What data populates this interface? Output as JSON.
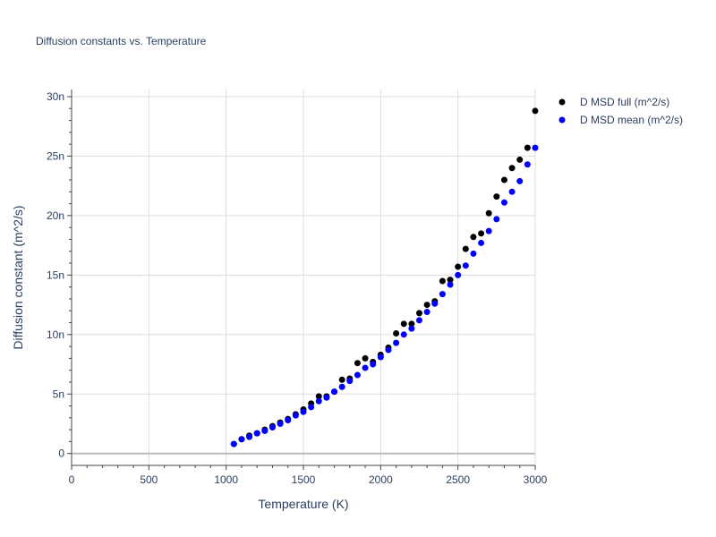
{
  "chart_data": {
    "type": "scatter",
    "title": "Diffusion constants vs. Temperature",
    "xlabel": "Temperature (K)",
    "ylabel": "Diffusion constant (m^2/s)",
    "xlim": [
      0,
      3000
    ],
    "ylim": [
      -1,
      30.6
    ],
    "x_ticks": [
      0,
      500,
      1000,
      1500,
      2000,
      2500,
      3000
    ],
    "x_tick_labels": [
      "0",
      "500",
      "1000",
      "1500",
      "2000",
      "2500",
      "3000"
    ],
    "y_ticks": [
      0,
      5,
      10,
      15,
      20,
      25,
      30
    ],
    "y_tick_labels": [
      "0",
      "5n",
      "10n",
      "15n",
      "20n",
      "25n",
      "30n"
    ],
    "y_unit_scale": "1e-9",
    "grid": true,
    "legend_position": "top-right",
    "series": [
      {
        "name": "D MSD full (m^2/s)",
        "color": "#000000",
        "x": [
          1050,
          1100,
          1150,
          1200,
          1250,
          1300,
          1350,
          1400,
          1450,
          1500,
          1550,
          1600,
          1650,
          1700,
          1750,
          1800,
          1850,
          1900,
          1950,
          2000,
          2050,
          2100,
          2150,
          2200,
          2250,
          2300,
          2350,
          2400,
          2450,
          2500,
          2550,
          2600,
          2650,
          2700,
          2750,
          2800,
          2850,
          2900,
          2950,
          3000
        ],
        "y": [
          0.8,
          1.2,
          1.5,
          1.7,
          2.0,
          2.3,
          2.6,
          2.9,
          3.3,
          3.7,
          4.2,
          4.8,
          4.8,
          5.2,
          6.2,
          6.3,
          7.6,
          8.0,
          7.7,
          8.3,
          8.9,
          10.1,
          10.9,
          10.9,
          11.8,
          12.5,
          12.8,
          14.5,
          14.6,
          15.7,
          17.2,
          18.2,
          18.5,
          20.2,
          21.6,
          23.0,
          24.0,
          24.7,
          25.7,
          28.8
        ]
      },
      {
        "name": "D MSD mean (m^2/s)",
        "color": "#0000ff",
        "x": [
          1050,
          1100,
          1150,
          1200,
          1250,
          1300,
          1350,
          1400,
          1450,
          1500,
          1550,
          1600,
          1650,
          1700,
          1750,
          1800,
          1850,
          1900,
          1950,
          2000,
          2050,
          2100,
          2150,
          2200,
          2250,
          2300,
          2350,
          2400,
          2450,
          2500,
          2550,
          2600,
          2650,
          2700,
          2750,
          2800,
          2850,
          2900,
          2950,
          3000
        ],
        "y": [
          0.8,
          1.2,
          1.4,
          1.7,
          1.9,
          2.2,
          2.5,
          2.8,
          3.2,
          3.5,
          3.9,
          4.4,
          4.7,
          5.2,
          5.6,
          6.1,
          6.6,
          7.2,
          7.5,
          8.1,
          8.7,
          9.3,
          10.0,
          10.5,
          11.2,
          11.9,
          12.6,
          13.4,
          14.2,
          15.0,
          15.8,
          16.8,
          17.7,
          18.7,
          19.7,
          21.1,
          22.0,
          22.9,
          24.3,
          25.7
        ]
      }
    ]
  }
}
